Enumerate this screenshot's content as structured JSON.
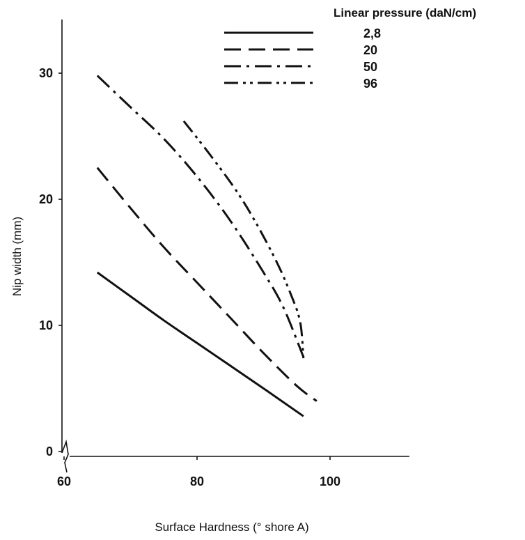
{
  "chart_data": {
    "type": "line",
    "title": "",
    "xlabel": "Surface Hardness (° shore A)",
    "ylabel": "Nip width (mm)",
    "xlim": [
      60,
      115
    ],
    "ylim": [
      0,
      34
    ],
    "x_ticks": [
      60,
      80,
      100
    ],
    "y_ticks": [
      0,
      10,
      20,
      30
    ],
    "grid": false,
    "legend_title": "Linear pressure (daN/cm)",
    "legend_position": "top-right",
    "series": [
      {
        "name": "2,8",
        "style": "solid",
        "x": [
          65,
          70,
          75,
          80,
          85,
          90,
          96
        ],
        "y": [
          14.2,
          12.3,
          10.4,
          8.6,
          6.8,
          5.0,
          2.8
        ]
      },
      {
        "name": "20",
        "style": "dashed",
        "x": [
          65,
          70,
          75,
          80,
          85,
          90,
          95,
          98
        ],
        "y": [
          22.5,
          19.3,
          16.2,
          13.4,
          10.6,
          7.8,
          5.2,
          4.0
        ]
      },
      {
        "name": "50",
        "style": "dash-dot",
        "x": [
          65,
          70,
          75,
          80,
          85,
          90,
          93,
          96
        ],
        "y": [
          29.8,
          27.3,
          24.8,
          21.8,
          18.3,
          14.2,
          11.4,
          7.5
        ]
      },
      {
        "name": "96",
        "style": "dash-dot-dot",
        "x": [
          78,
          82,
          86,
          89,
          92,
          94,
          95.5,
          96
        ],
        "y": [
          26.2,
          23.5,
          20.6,
          18.0,
          15.0,
          12.6,
          10.3,
          7.4
        ]
      }
    ]
  }
}
